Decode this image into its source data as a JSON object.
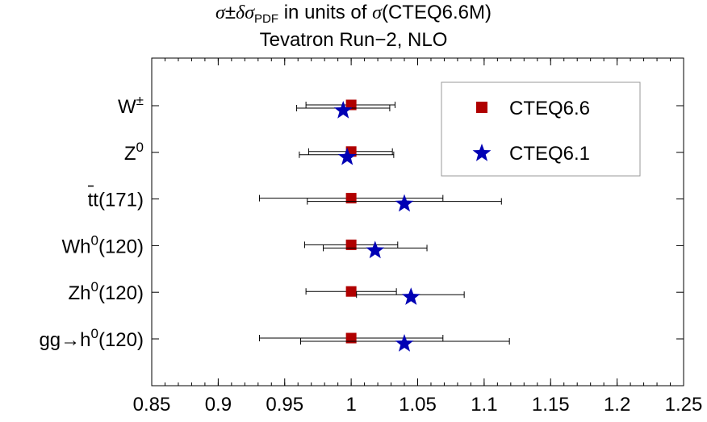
{
  "chart_data": {
    "type": "scatter",
    "title_line1": "σ±δσPDF in units of σ(CTEQ6.6M)",
    "title_line2": "Tevatron Run−2, NLO",
    "xlabel": "",
    "ylabel": "",
    "xlim": [
      0.85,
      1.25
    ],
    "xticks": [
      "0.85",
      "0.9",
      "0.95",
      "1",
      "1.05",
      "1.1",
      "1.15",
      "1.2",
      "1.25"
    ],
    "grid": false,
    "legend_position": "top-right",
    "categories": [
      {
        "label": "W",
        "sup": "±",
        "suffix": "",
        "overbar": false
      },
      {
        "label": "Z",
        "sup": "0",
        "suffix": "",
        "overbar": false
      },
      {
        "label": "tt",
        "sup": "",
        "suffix": "(171)",
        "overbar": true
      },
      {
        "label": "Wh",
        "sup": "0",
        "suffix": "(120)",
        "overbar": false
      },
      {
        "label": "Zh",
        "sup": "0",
        "suffix": "(120)",
        "overbar": false
      },
      {
        "label": "gg→h",
        "sup": "0",
        "suffix": "(120)",
        "overbar": false
      }
    ],
    "series": [
      {
        "name": "CTEQ6.6",
        "marker": "square",
        "color": "#b00000",
        "points": [
          {
            "x": 1.0,
            "low": 0.966,
            "high": 1.033
          },
          {
            "x": 1.0,
            "low": 0.968,
            "high": 1.031
          },
          {
            "x": 1.0,
            "low": 0.931,
            "high": 1.069
          },
          {
            "x": 1.0,
            "low": 0.965,
            "high": 1.035
          },
          {
            "x": 1.0,
            "low": 0.966,
            "high": 1.034
          },
          {
            "x": 1.0,
            "low": 0.931,
            "high": 1.069
          }
        ]
      },
      {
        "name": "CTEQ6.1",
        "marker": "star",
        "color": "#0000b4",
        "points": [
          {
            "x": 0.994,
            "low": 0.959,
            "high": 1.029
          },
          {
            "x": 0.997,
            "low": 0.961,
            "high": 1.032
          },
          {
            "x": 1.04,
            "low": 0.967,
            "high": 1.113
          },
          {
            "x": 1.018,
            "low": 0.979,
            "high": 1.057
          },
          {
            "x": 1.045,
            "low": 1.004,
            "high": 1.085
          },
          {
            "x": 1.04,
            "low": 0.962,
            "high": 1.119
          }
        ]
      }
    ]
  }
}
